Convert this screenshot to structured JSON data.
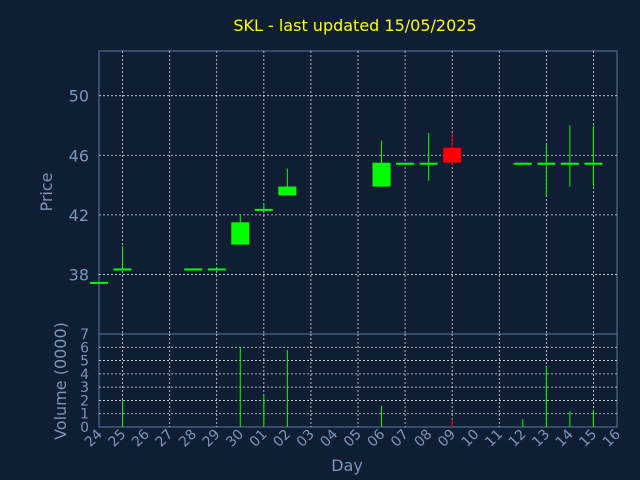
{
  "chart_data": {
    "type": "candlestick",
    "title": "SKL - last updated 15/05/2025",
    "xlabel": "Day",
    "ylabel_price": "Price",
    "ylabel_volume": "Volume (0000)",
    "price_ylim": [
      34,
      53
    ],
    "price_ticks": [
      38,
      42,
      46,
      50
    ],
    "volume_ylim": [
      0,
      7
    ],
    "volume_ticks": [
      0,
      1,
      2,
      3,
      4,
      5,
      6,
      7
    ],
    "grid": true,
    "colors": {
      "background": "#0f1e33",
      "up": "#00ff00",
      "down": "#ff0000",
      "grid": "#ffffff",
      "axis_text": "#7a96b8",
      "title": "#ffff00"
    },
    "x_labels": [
      "24",
      "25",
      "26",
      "27",
      "28",
      "29",
      "30",
      "01",
      "02",
      "03",
      "04",
      "05",
      "06",
      "07",
      "08",
      "09",
      "10",
      "11",
      "12",
      "13",
      "14",
      "15",
      "16"
    ],
    "candles": [
      {
        "x": "24",
        "open": 37.5,
        "high": 37.5,
        "low": 37.5,
        "close": 37.5,
        "volume": 0.0
      },
      {
        "x": "25",
        "open": 38.4,
        "high": 39.9,
        "low": 38.4,
        "close": 38.4,
        "volume": 2.0
      },
      {
        "x": "28",
        "open": 38.4,
        "high": 38.4,
        "low": 38.4,
        "close": 38.4,
        "volume": 0.0
      },
      {
        "x": "29",
        "open": 38.4,
        "high": 38.4,
        "low": 38.4,
        "close": 38.4,
        "volume": 0.0
      },
      {
        "x": "30",
        "open": 40.0,
        "high": 42.0,
        "low": 40.0,
        "close": 41.5,
        "volume": 6.0
      },
      {
        "x": "01",
        "open": 42.4,
        "high": 42.8,
        "low": 42.4,
        "close": 42.4,
        "volume": 2.4
      },
      {
        "x": "02",
        "open": 43.3,
        "high": 45.1,
        "low": 43.3,
        "close": 43.9,
        "volume": 5.8
      },
      {
        "x": "06",
        "open": 43.9,
        "high": 47.0,
        "low": 43.9,
        "close": 45.5,
        "volume": 1.6
      },
      {
        "x": "07",
        "open": 45.5,
        "high": 45.5,
        "low": 45.5,
        "close": 45.5,
        "volume": 0.0
      },
      {
        "x": "08",
        "open": 45.5,
        "high": 47.5,
        "low": 44.3,
        "close": 45.5,
        "volume": 0.0
      },
      {
        "x": "09",
        "open": 46.5,
        "high": 47.5,
        "low": 45.3,
        "close": 45.5,
        "volume": 0.6
      },
      {
        "x": "12",
        "open": 45.5,
        "high": 45.5,
        "low": 45.5,
        "close": 45.5,
        "volume": 0.6
      },
      {
        "x": "13",
        "open": 45.5,
        "high": 46.7,
        "low": 43.2,
        "close": 45.5,
        "volume": 4.6
      },
      {
        "x": "14",
        "open": 45.5,
        "high": 48.0,
        "low": 43.9,
        "close": 45.5,
        "volume": 1.2
      },
      {
        "x": "15",
        "open": 45.5,
        "high": 48.0,
        "low": 43.9,
        "close": 45.5,
        "volume": 1.3
      }
    ]
  }
}
